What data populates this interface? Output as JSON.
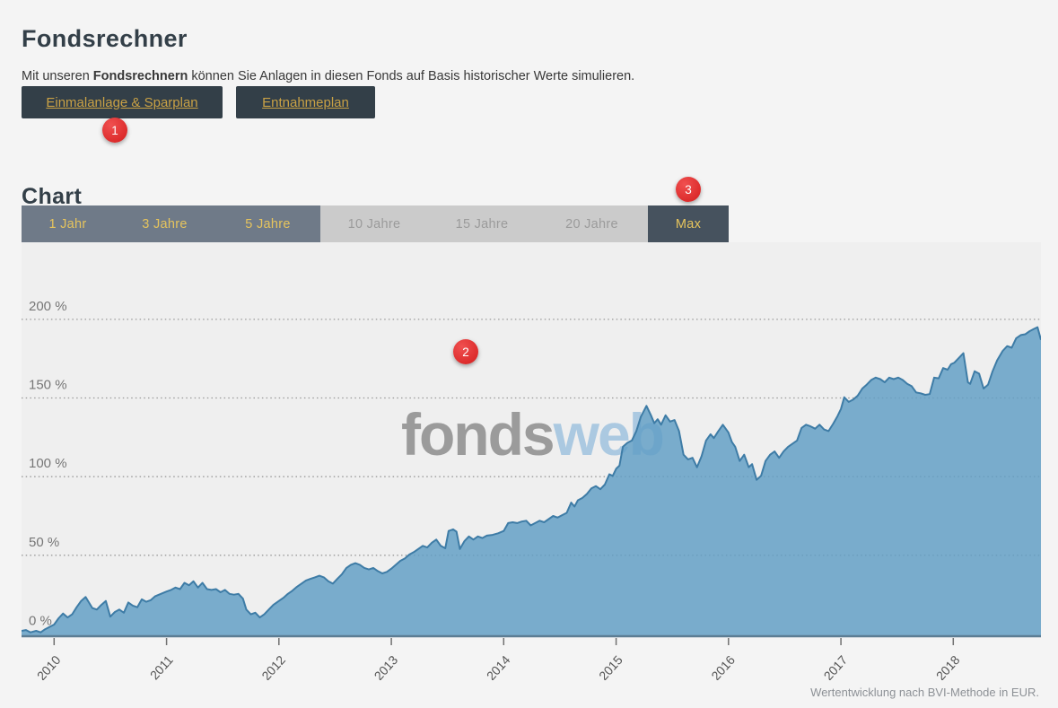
{
  "header": {
    "title": "Fondsrechner",
    "description": {
      "prefix": "Mit unseren ",
      "bold": "Fondsrechnern",
      "suffix": " können Sie Anlagen in diesen Fonds auf Basis historischer Werte simulieren."
    }
  },
  "calculator_buttons": [
    {
      "label": "Einmalanlage & Sparplan"
    },
    {
      "label": "Entnahmeplan"
    }
  ],
  "annotations": [
    {
      "label": "1"
    },
    {
      "label": "2"
    },
    {
      "label": "3"
    }
  ],
  "chart_section": {
    "heading": "Chart",
    "range_tabs": [
      {
        "label": "1 Jahr",
        "state": "active"
      },
      {
        "label": "3 Jahre",
        "state": "active"
      },
      {
        "label": "5 Jahre",
        "state": "active"
      },
      {
        "label": "10 Jahre",
        "state": "inactive"
      },
      {
        "label": "15 Jahre",
        "state": "inactive"
      },
      {
        "label": "20 Jahre",
        "state": "inactive"
      },
      {
        "label": "Max",
        "state": "selected"
      }
    ],
    "watermark": {
      "gray": "fonds",
      "blue": "web"
    },
    "footnote": "Wertentwicklung nach BVI-Methode in EUR."
  },
  "colors": {
    "dark_navy": "#333f48",
    "button_gold": "#c9a145",
    "tab_gold": "#e6c45d",
    "tab_active_bg": "#6f7a88",
    "tab_inactive_bg": "#cbcbcb",
    "tab_selected_bg": "#46525e",
    "badge_red": "#dd2c2c",
    "plot_background": "#efefef",
    "area_fill": "#5f9dc4",
    "area_stroke": "#3e7ca6",
    "axis_line": "#5c7d93",
    "grid_dot": "#999999",
    "tick_label": "#555555",
    "y_label": "#767676",
    "watermark_gray": "#9b9b9b",
    "watermark_blue": "#abc9e1"
  },
  "chart_data": {
    "type": "area",
    "title": "Wertentwicklung (Max)",
    "xlabel": "",
    "ylabel": "",
    "x_unit": "year",
    "y_unit": "percent",
    "xlim": [
      2009.71,
      2018.78
    ],
    "ylim": [
      -2,
      249
    ],
    "x_ticks": [
      2010,
      2011,
      2012,
      2013,
      2014,
      2015,
      2016,
      2017,
      2018
    ],
    "y_ticks": [
      {
        "value": 0,
        "label": "0 %"
      },
      {
        "value": 50,
        "label": "50 %"
      },
      {
        "value": 100,
        "label": "100 %"
      },
      {
        "value": 150,
        "label": "150 %"
      },
      {
        "value": 200,
        "label": "200 %"
      }
    ],
    "grid": "dotted-horizontal",
    "legend": false,
    "series": [
      {
        "name": "Wertentwicklung nach BVI-Methode in EUR",
        "points": [
          [
            2009.71,
            2
          ],
          [
            2009.75,
            2.5
          ],
          [
            2009.79,
            1
          ],
          [
            2009.84,
            2
          ],
          [
            2009.88,
            1
          ],
          [
            2009.92,
            3
          ],
          [
            2009.96,
            4.5
          ],
          [
            2010.0,
            6
          ],
          [
            2010.04,
            10
          ],
          [
            2010.08,
            13
          ],
          [
            2010.12,
            10.5
          ],
          [
            2010.16,
            12.5
          ],
          [
            2010.2,
            17
          ],
          [
            2010.24,
            21
          ],
          [
            2010.28,
            23.5
          ],
          [
            2010.31,
            20
          ],
          [
            2010.34,
            16.5
          ],
          [
            2010.38,
            15.5
          ],
          [
            2010.42,
            18.5
          ],
          [
            2010.46,
            21
          ],
          [
            2010.5,
            11
          ],
          [
            2010.54,
            14
          ],
          [
            2010.58,
            15.5
          ],
          [
            2010.62,
            13.5
          ],
          [
            2010.66,
            20
          ],
          [
            2010.7,
            18
          ],
          [
            2010.74,
            17
          ],
          [
            2010.78,
            22
          ],
          [
            2010.82,
            20.5
          ],
          [
            2010.86,
            21.5
          ],
          [
            2010.9,
            24
          ],
          [
            2010.95,
            25.5
          ],
          [
            2011.0,
            27
          ],
          [
            2011.04,
            28
          ],
          [
            2011.08,
            29.5
          ],
          [
            2011.12,
            28.5
          ],
          [
            2011.16,
            32.5
          ],
          [
            2011.2,
            31
          ],
          [
            2011.24,
            33.5
          ],
          [
            2011.28,
            29.5
          ],
          [
            2011.32,
            32.5
          ],
          [
            2011.36,
            28.5
          ],
          [
            2011.4,
            28
          ],
          [
            2011.44,
            28.5
          ],
          [
            2011.48,
            26.5
          ],
          [
            2011.52,
            28
          ],
          [
            2011.56,
            25.5
          ],
          [
            2011.6,
            25
          ],
          [
            2011.64,
            25.5
          ],
          [
            2011.68,
            22.5
          ],
          [
            2011.71,
            15.5
          ],
          [
            2011.75,
            12.5
          ],
          [
            2011.79,
            13.5
          ],
          [
            2011.83,
            10.5
          ],
          [
            2011.87,
            12.5
          ],
          [
            2011.91,
            15.5
          ],
          [
            2011.95,
            18.5
          ],
          [
            2012.0,
            21
          ],
          [
            2012.04,
            23
          ],
          [
            2012.08,
            25.5
          ],
          [
            2012.12,
            27.5
          ],
          [
            2012.16,
            30
          ],
          [
            2012.2,
            32
          ],
          [
            2012.24,
            34
          ],
          [
            2012.28,
            35
          ],
          [
            2012.32,
            36
          ],
          [
            2012.36,
            37
          ],
          [
            2012.4,
            36
          ],
          [
            2012.44,
            33.5
          ],
          [
            2012.48,
            32
          ],
          [
            2012.52,
            35
          ],
          [
            2012.56,
            38
          ],
          [
            2012.6,
            42
          ],
          [
            2012.64,
            44
          ],
          [
            2012.68,
            45
          ],
          [
            2012.72,
            44
          ],
          [
            2012.76,
            42
          ],
          [
            2012.8,
            41
          ],
          [
            2012.84,
            42
          ],
          [
            2012.88,
            40
          ],
          [
            2012.92,
            38.5
          ],
          [
            2012.96,
            39.5
          ],
          [
            2013.0,
            41.5
          ],
          [
            2013.04,
            44
          ],
          [
            2013.08,
            46.5
          ],
          [
            2013.12,
            48
          ],
          [
            2013.16,
            50.5
          ],
          [
            2013.2,
            52
          ],
          [
            2013.24,
            54
          ],
          [
            2013.28,
            56
          ],
          [
            2013.32,
            55
          ],
          [
            2013.36,
            58
          ],
          [
            2013.4,
            60
          ],
          [
            2013.44,
            56
          ],
          [
            2013.48,
            54.5
          ],
          [
            2013.51,
            65.5
          ],
          [
            2013.55,
            66.5
          ],
          [
            2013.58,
            65
          ],
          [
            2013.61,
            54
          ],
          [
            2013.65,
            59
          ],
          [
            2013.69,
            62
          ],
          [
            2013.73,
            60
          ],
          [
            2013.77,
            62
          ],
          [
            2013.81,
            61
          ],
          [
            2013.85,
            62.5
          ],
          [
            2013.9,
            63
          ],
          [
            2013.95,
            64
          ],
          [
            2014.0,
            65.5
          ],
          [
            2014.04,
            70.5
          ],
          [
            2014.08,
            71
          ],
          [
            2014.12,
            70.5
          ],
          [
            2014.16,
            71.5
          ],
          [
            2014.2,
            72
          ],
          [
            2014.24,
            69
          ],
          [
            2014.28,
            70.5
          ],
          [
            2014.32,
            72
          ],
          [
            2014.36,
            71
          ],
          [
            2014.4,
            73
          ],
          [
            2014.44,
            75
          ],
          [
            2014.48,
            74
          ],
          [
            2014.52,
            75.5
          ],
          [
            2014.56,
            77
          ],
          [
            2014.6,
            83.5
          ],
          [
            2014.63,
            81
          ],
          [
            2014.66,
            85
          ],
          [
            2014.7,
            86.5
          ],
          [
            2014.74,
            89
          ],
          [
            2014.78,
            92.5
          ],
          [
            2014.82,
            94
          ],
          [
            2014.86,
            92
          ],
          [
            2014.9,
            95
          ],
          [
            2014.94,
            101.5
          ],
          [
            2014.97,
            100.5
          ],
          [
            2015.0,
            105
          ],
          [
            2015.03,
            107
          ],
          [
            2015.06,
            119
          ],
          [
            2015.1,
            121.5
          ],
          [
            2015.14,
            123
          ],
          [
            2015.18,
            129
          ],
          [
            2015.22,
            138
          ],
          [
            2015.27,
            145
          ],
          [
            2015.31,
            139
          ],
          [
            2015.34,
            134
          ],
          [
            2015.37,
            136.5
          ],
          [
            2015.4,
            133
          ],
          [
            2015.44,
            139
          ],
          [
            2015.48,
            135
          ],
          [
            2015.52,
            136
          ],
          [
            2015.56,
            129
          ],
          [
            2015.6,
            114
          ],
          [
            2015.64,
            111
          ],
          [
            2015.68,
            112
          ],
          [
            2015.72,
            106
          ],
          [
            2015.76,
            113
          ],
          [
            2015.8,
            123
          ],
          [
            2015.84,
            127
          ],
          [
            2015.87,
            124.5
          ],
          [
            2015.91,
            129
          ],
          [
            2015.95,
            133
          ],
          [
            2016.0,
            128
          ],
          [
            2016.03,
            122
          ],
          [
            2016.06,
            119
          ],
          [
            2016.1,
            110
          ],
          [
            2016.14,
            114
          ],
          [
            2016.18,
            106
          ],
          [
            2016.21,
            108
          ],
          [
            2016.25,
            98
          ],
          [
            2016.29,
            100.5
          ],
          [
            2016.33,
            110
          ],
          [
            2016.37,
            114
          ],
          [
            2016.41,
            116
          ],
          [
            2016.45,
            112
          ],
          [
            2016.49,
            116
          ],
          [
            2016.53,
            119
          ],
          [
            2016.57,
            121
          ],
          [
            2016.61,
            123
          ],
          [
            2016.65,
            131
          ],
          [
            2016.69,
            133
          ],
          [
            2016.73,
            132
          ],
          [
            2016.77,
            130.5
          ],
          [
            2016.81,
            133
          ],
          [
            2016.85,
            130
          ],
          [
            2016.89,
            129
          ],
          [
            2016.93,
            133.5
          ],
          [
            2016.97,
            138.5
          ],
          [
            2017.0,
            143
          ],
          [
            2017.03,
            150.5
          ],
          [
            2017.07,
            147.5
          ],
          [
            2017.11,
            149
          ],
          [
            2017.15,
            151.5
          ],
          [
            2017.19,
            156
          ],
          [
            2017.23,
            158.5
          ],
          [
            2017.27,
            161.5
          ],
          [
            2017.31,
            163
          ],
          [
            2017.35,
            162
          ],
          [
            2017.39,
            160
          ],
          [
            2017.43,
            163
          ],
          [
            2017.47,
            162
          ],
          [
            2017.51,
            163
          ],
          [
            2017.55,
            161.5
          ],
          [
            2017.59,
            159
          ],
          [
            2017.63,
            157.5
          ],
          [
            2017.67,
            153.5
          ],
          [
            2017.71,
            153
          ],
          [
            2017.75,
            152
          ],
          [
            2017.79,
            152.5
          ],
          [
            2017.83,
            163
          ],
          [
            2017.87,
            162.5
          ],
          [
            2017.91,
            169
          ],
          [
            2017.95,
            168
          ],
          [
            2017.98,
            171.5
          ],
          [
            2018.01,
            172.5
          ],
          [
            2018.05,
            175.5
          ],
          [
            2018.09,
            178.5
          ],
          [
            2018.13,
            160
          ],
          [
            2018.15,
            159
          ],
          [
            2018.19,
            167
          ],
          [
            2018.23,
            165.5
          ],
          [
            2018.27,
            156
          ],
          [
            2018.31,
            158.5
          ],
          [
            2018.35,
            167
          ],
          [
            2018.39,
            174
          ],
          [
            2018.44,
            180
          ],
          [
            2018.48,
            183
          ],
          [
            2018.52,
            182
          ],
          [
            2018.56,
            188
          ],
          [
            2018.6,
            190
          ],
          [
            2018.64,
            190.5
          ],
          [
            2018.68,
            192.5
          ],
          [
            2018.72,
            194
          ],
          [
            2018.75,
            195
          ],
          [
            2018.78,
            187
          ]
        ]
      }
    ]
  }
}
